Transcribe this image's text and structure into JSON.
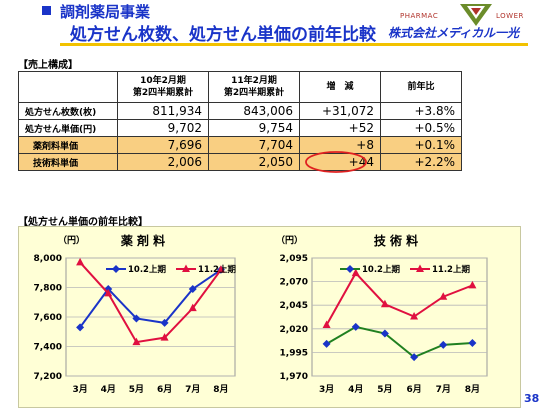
{
  "header": {
    "section_title": "調剤薬局事業",
    "main_title": "処方せん枚数、処方せん単価の前年比較",
    "company": "株式会社メディカル一光",
    "logo_left": "PHARMAC",
    "logo_right": "LOWER",
    "page_number": "38"
  },
  "sales_table": {
    "label": "【売上構成】",
    "col_headers": [
      {
        "line1": "10年2月期",
        "line2": "第2四半期累計"
      },
      {
        "line1": "11年2月期",
        "line2": "第2四半期累計"
      },
      {
        "line1": "増　減",
        "line2": ""
      },
      {
        "line1": "前年比",
        "line2": ""
      }
    ],
    "rows": [
      {
        "label": "処方せん枚数(枚)",
        "values": [
          "811,934",
          "843,006",
          "+31,072",
          "+3.8%"
        ],
        "sub": false
      },
      {
        "label": "処方せん単価(円)",
        "values": [
          "9,702",
          "9,754",
          "+52",
          "+0.5%"
        ],
        "sub": false
      },
      {
        "label": "薬剤料単価",
        "values": [
          "7,696",
          "7,704",
          "+8",
          "+0.1%"
        ],
        "sub": true
      },
      {
        "label": "技術料単価",
        "values": [
          "2,006",
          "2,050",
          "+44",
          "+2.2%"
        ],
        "sub": true
      }
    ],
    "highlight_color": "#e02020"
  },
  "chart_section_label": "【処方せん単価の前年比較】",
  "chart_data": [
    {
      "type": "line",
      "title": "薬 剤 料",
      "unit": "（円）",
      "categories": [
        "3月",
        "4月",
        "5月",
        "6月",
        "7月",
        "8月"
      ],
      "ylim": [
        7200,
        8000
      ],
      "yticks": [
        "8,000",
        "7,800",
        "7,600",
        "7,400",
        "7,200"
      ],
      "ytick_values": [
        8000,
        7800,
        7600,
        7400,
        7200
      ],
      "grid": true,
      "legend": "top",
      "series": [
        {
          "name": "10.2上期",
          "color": "#1a34c8",
          "marker": "diamond",
          "values": [
            7530,
            7790,
            7590,
            7560,
            7790,
            7920
          ]
        },
        {
          "name": "11.2上期",
          "color": "#e01040",
          "marker": "triangle",
          "values": [
            7970,
            7760,
            7430,
            7460,
            7660,
            7920
          ]
        }
      ]
    },
    {
      "type": "line",
      "title": "技 術 料",
      "unit": "（円）",
      "categories": [
        "3月",
        "4月",
        "5月",
        "6月",
        "7月",
        "8月"
      ],
      "ylim": [
        1970,
        2095
      ],
      "yticks": [
        "2,095",
        "2,070",
        "2,045",
        "2,020",
        "1,995",
        "1,970"
      ],
      "ytick_values": [
        2095,
        2070,
        2045,
        2020,
        1995,
        1970
      ],
      "grid": true,
      "legend": "top",
      "series": [
        {
          "name": "10.2上期",
          "color": "#208020",
          "marker": "diamond",
          "values": [
            2004,
            2022,
            2015,
            1990,
            2003,
            2005
          ]
        },
        {
          "name": "11.2上期",
          "color": "#e01040",
          "marker": "triangle",
          "values": [
            2024,
            2079,
            2046,
            2033,
            2054,
            2066
          ]
        }
      ]
    }
  ]
}
